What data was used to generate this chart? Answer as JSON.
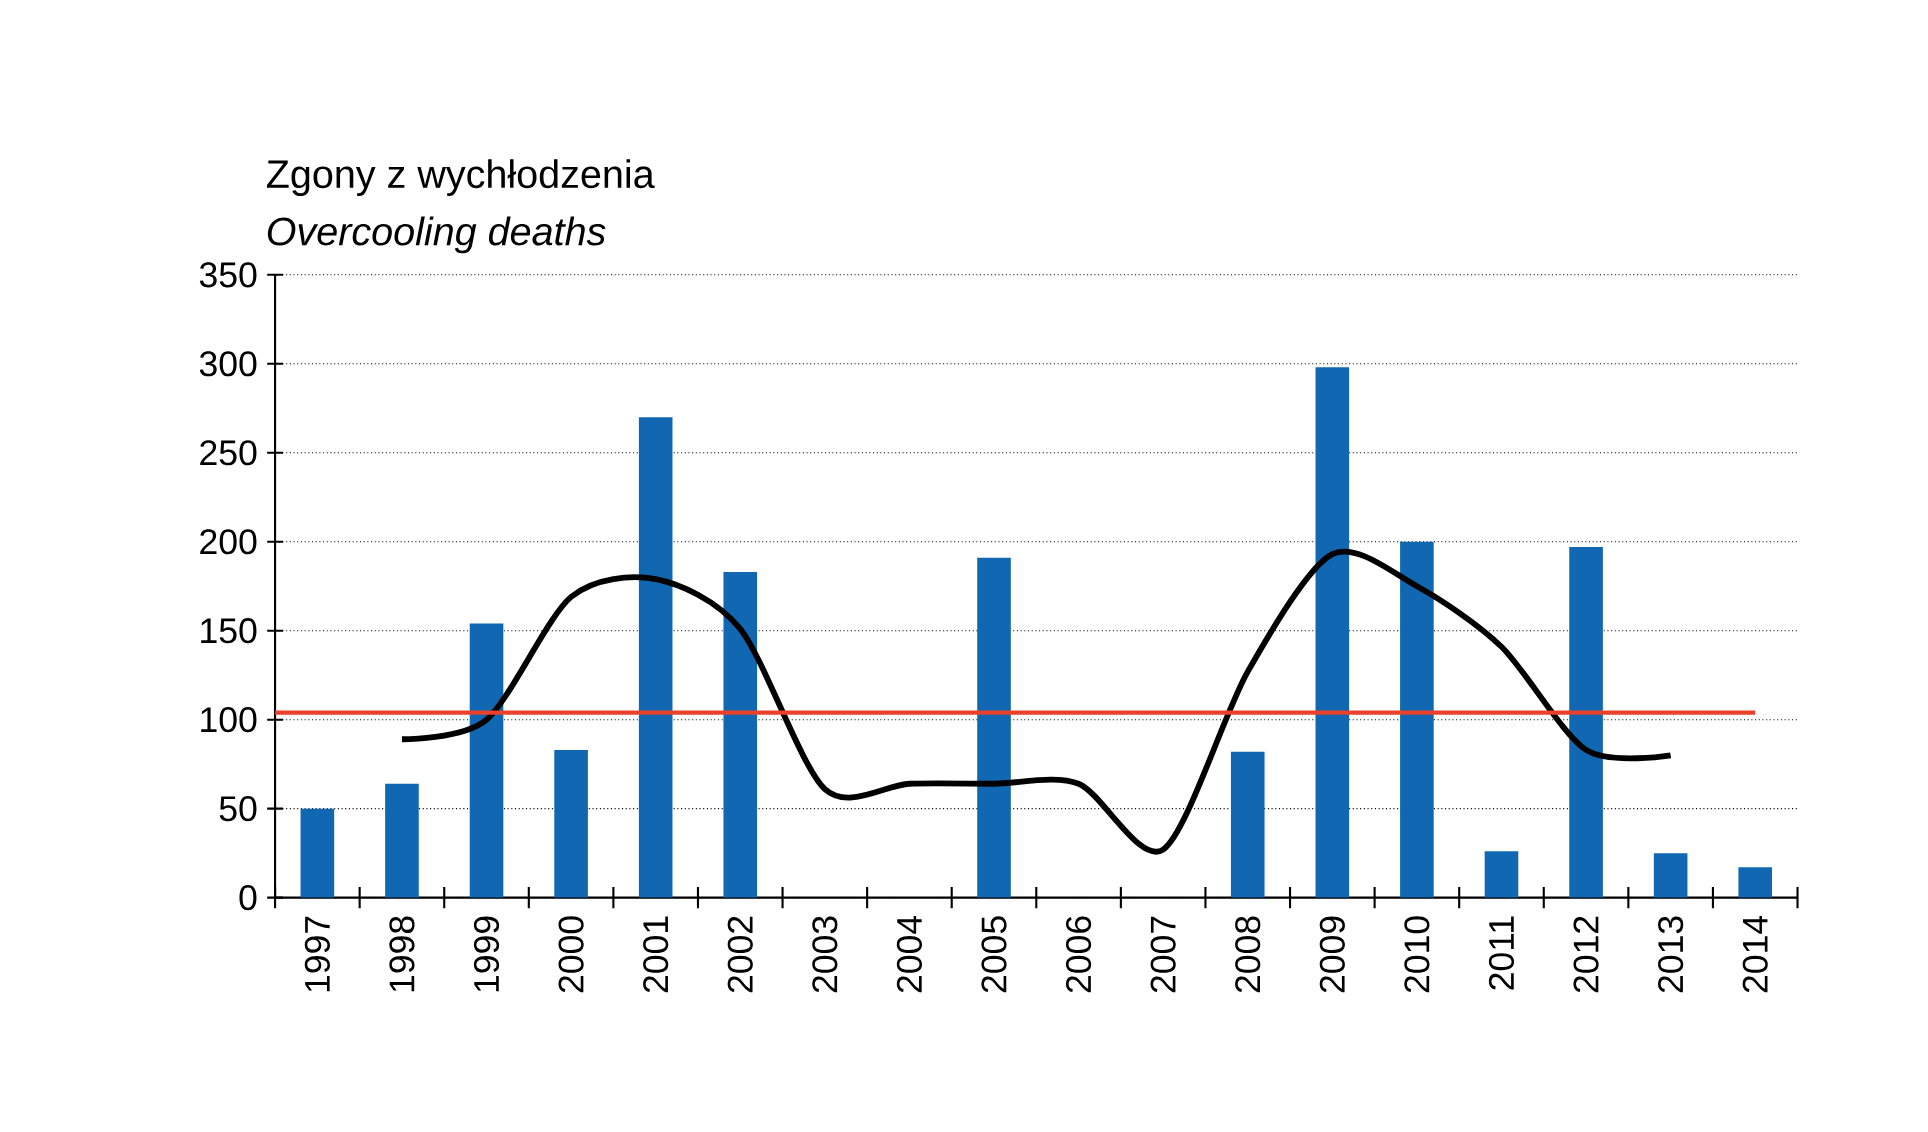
{
  "chart_data": {
    "type": "bar",
    "title": "Zgony z wychłodzenia",
    "subtitle": "Overcooling deaths",
    "categories": [
      "1997",
      "1998",
      "1999",
      "2000",
      "2001",
      "2002",
      "2003",
      "2004",
      "2005",
      "2006",
      "2007",
      "2008",
      "2009",
      "2010",
      "2011",
      "2012",
      "2013",
      "2014"
    ],
    "series": [
      {
        "color": "#1167b1",
        "values": [
          50,
          64,
          154,
          83,
          270,
          183,
          0,
          0,
          191,
          0,
          0,
          82,
          298,
          200,
          26,
          197,
          25,
          17
        ]
      },
      {
        "type": "line",
        "color": "#000000",
        "values": [
          null,
          89,
          100,
          169,
          179,
          151,
          61,
          64,
          64,
          64,
          27,
          127,
          193,
          175,
          141,
          83,
          80,
          null
        ]
      }
    ],
    "ylim": [
      0,
      350
    ],
    "yticks": [
      0,
      50,
      100,
      150,
      200,
      250,
      300,
      350
    ],
    "grid": "y",
    "ref_lines": [
      {
        "axis": "y",
        "value": 104,
        "color": "#e8412c"
      }
    ]
  }
}
